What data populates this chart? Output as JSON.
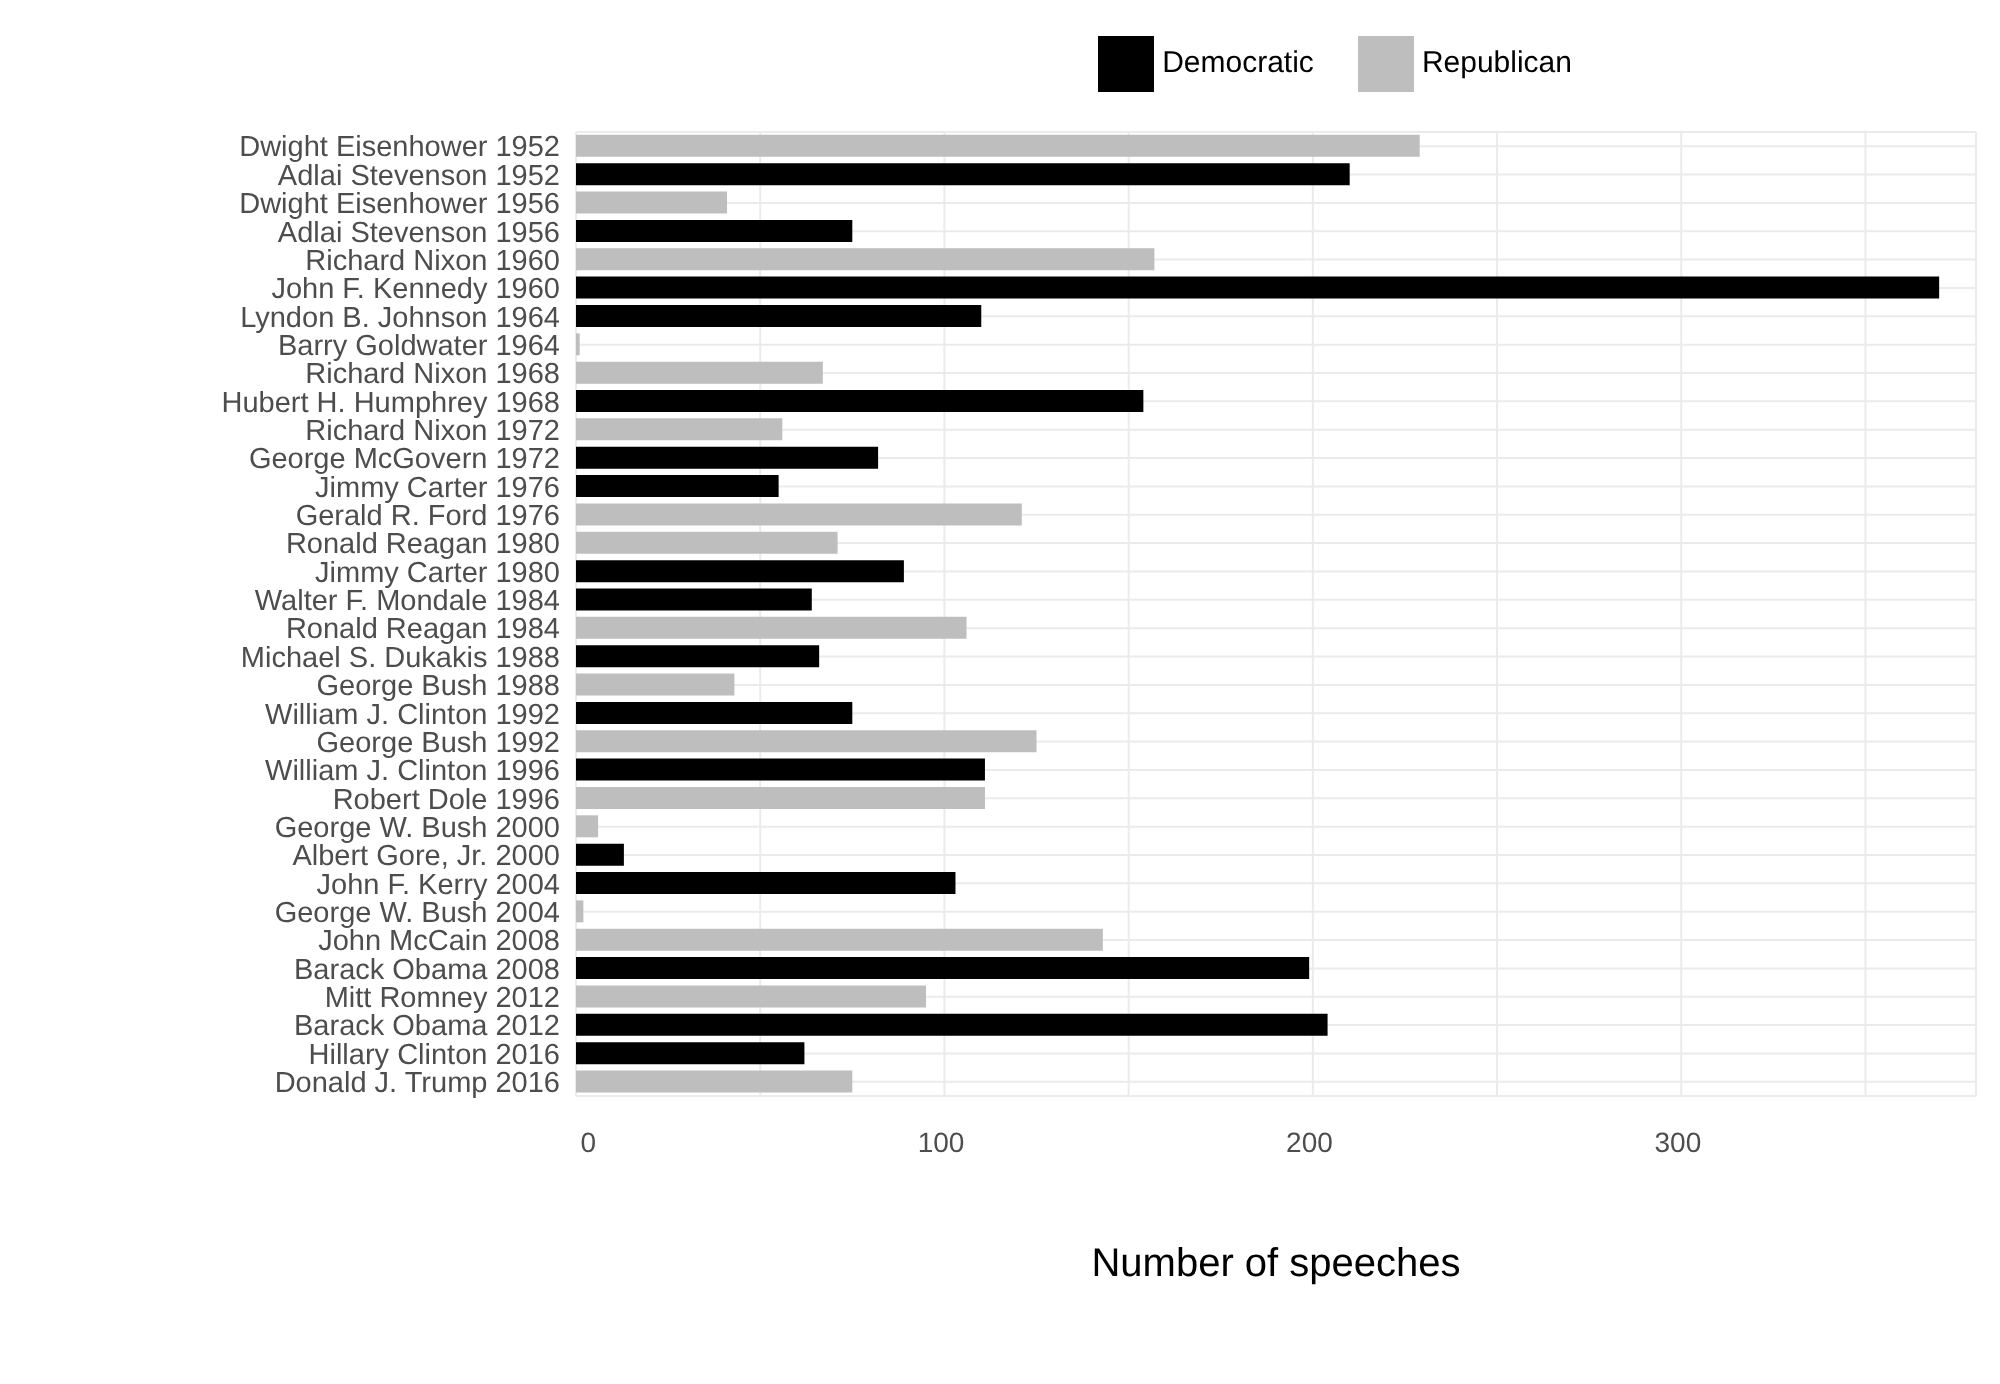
{
  "chart_data": {
    "type": "bar",
    "orientation": "horizontal",
    "stacked": true,
    "xlabel": "Number of speeches",
    "categories": [
      "Dwight Eisenhower 1952",
      "Adlai Stevenson 1952",
      "Dwight Eisenhower 1956",
      "Adlai Stevenson 1956",
      "Richard Nixon 1960",
      "John F. Kennedy 1960",
      "Lyndon B. Johnson 1964",
      "Barry Goldwater 1964",
      "Richard Nixon 1968",
      "Hubert H. Humphrey 1968",
      "Richard Nixon 1972",
      "George McGovern 1972",
      "Jimmy Carter 1976",
      "Gerald R. Ford 1976",
      "Ronald Reagan 1980",
      "Jimmy Carter 1980",
      "Walter F. Mondale 1984",
      "Ronald Reagan 1984",
      "Michael S. Dukakis 1988",
      "George Bush 1988",
      "William J. Clinton 1992",
      "George Bush 1992",
      "William J. Clinton 1996",
      "Robert Dole 1996",
      "George W. Bush 2000",
      "Albert Gore, Jr. 2000",
      "John F. Kerry 2004",
      "George W. Bush 2004",
      "John McCain 2008",
      "Barack Obama 2008",
      "Mitt Romney 2012",
      "Barack Obama 2012",
      "Hillary Clinton 2016",
      "Donald J. Trump 2016"
    ],
    "series": [
      {
        "name": "Democratic",
        "color": "#000000",
        "values": [
          null,
          210,
          null,
          75,
          null,
          370,
          110,
          null,
          null,
          154,
          null,
          82,
          55,
          null,
          null,
          89,
          64,
          null,
          66,
          null,
          75,
          null,
          111,
          null,
          null,
          13,
          103,
          null,
          null,
          199,
          null,
          204,
          62,
          null
        ]
      },
      {
        "name": "Republican",
        "color": "#bebebe",
        "values": [
          229,
          null,
          41,
          null,
          157,
          null,
          null,
          1,
          67,
          null,
          56,
          null,
          null,
          121,
          71,
          null,
          null,
          106,
          null,
          43,
          null,
          125,
          null,
          111,
          6,
          null,
          null,
          2,
          143,
          null,
          95,
          null,
          null,
          75
        ]
      }
    ],
    "xlim": [
      0,
      380
    ],
    "xticks": [
      0,
      {
        "value": 50,
        "label": null
      },
      100,
      {
        "value": 150,
        "label": null
      },
      200,
      {
        "value": 250,
        "label": null
      },
      300,
      {
        "value": 350,
        "label": null
      }
    ],
    "grid": true,
    "legend": "top"
  }
}
